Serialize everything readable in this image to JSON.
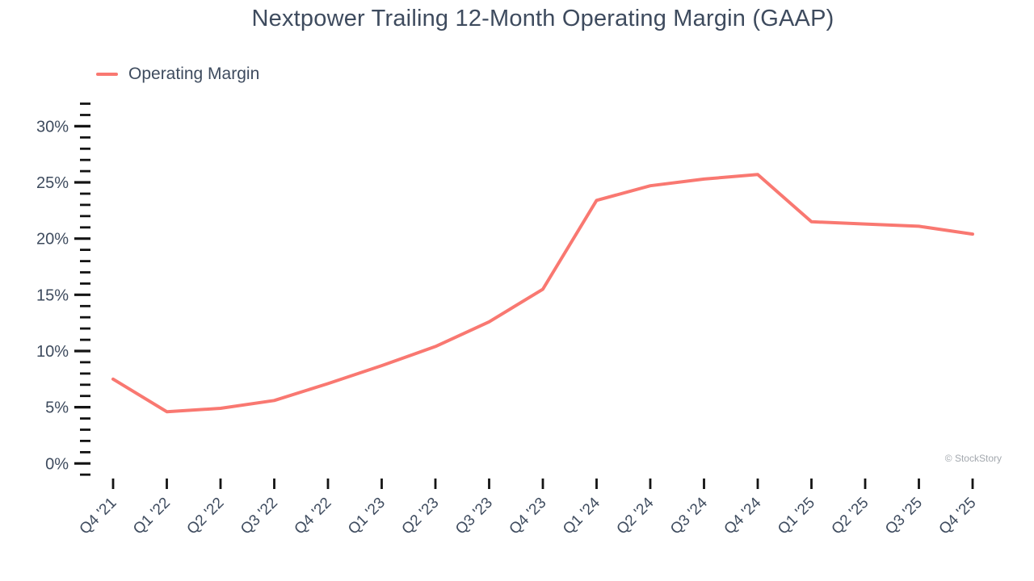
{
  "watermark": "© StockStory",
  "chart_data": {
    "type": "line",
    "title": "Nextpower Trailing 12-Month Operating Margin (GAAP)",
    "xlabel": "",
    "ylabel": "",
    "grid": false,
    "legend_position": "top-left",
    "categories": [
      "Q4 '21",
      "Q1 '22",
      "Q2 '22",
      "Q3 '22",
      "Q4 '22",
      "Q1 '23",
      "Q2 '23",
      "Q3 '23",
      "Q4 '23",
      "Q1 '24",
      "Q2 '24",
      "Q3 '24",
      "Q4 '24",
      "Q1 '25",
      "Q2 '25",
      "Q3 '25",
      "Q4 '25"
    ],
    "series": [
      {
        "name": "Operating Margin",
        "values": [
          7.5,
          4.6,
          4.9,
          5.6,
          7.1,
          8.7,
          10.4,
          12.6,
          15.5,
          23.4,
          24.7,
          25.3,
          25.7,
          21.5,
          21.3,
          21.1,
          20.4
        ],
        "color": "#f97871"
      }
    ],
    "y_axis": {
      "unit": "percent",
      "major_ticks": [
        0,
        5,
        10,
        15,
        20,
        25,
        30
      ],
      "labels": [
        "0%",
        "5%",
        "10%",
        "15%",
        "20%",
        "25%",
        "30%"
      ],
      "minor_tick_step": 1,
      "range": [
        -1,
        32
      ]
    },
    "colors": {
      "line": "#f97871",
      "text": "#3e4b5e",
      "tick": "#141414",
      "watermark": "#a3a8ae",
      "background": "#ffffff"
    }
  }
}
